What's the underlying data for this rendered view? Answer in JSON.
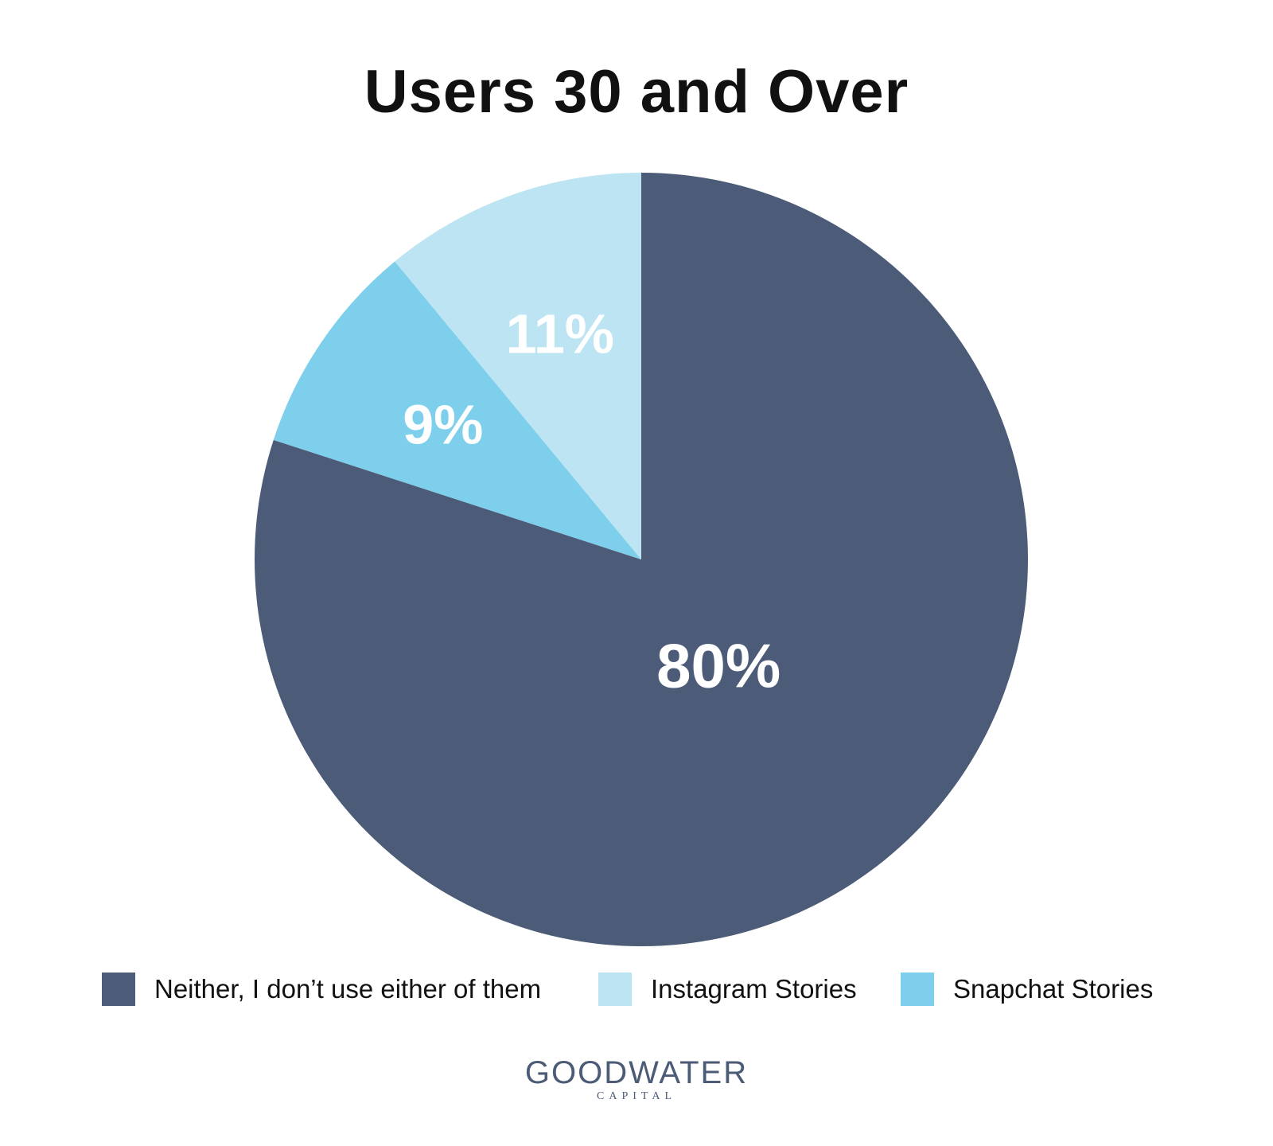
{
  "chart_data": {
    "type": "pie",
    "title": "Users 30 and Over",
    "categories": [
      "Neither, I don’t use either of them",
      "Snapchat Stories",
      "Instagram Stories"
    ],
    "values": [
      80,
      9,
      11
    ],
    "labels": [
      "80%",
      "9%",
      "11%"
    ],
    "colors": [
      "#4c5b78",
      "#7dcfeb",
      "#bde4f2"
    ],
    "legend_position": "bottom",
    "legend": [
      {
        "label": "Neither, I don’t use either of them",
        "color": "#4c5b78"
      },
      {
        "label": "Instagram Stories",
        "color": "#bde4f2"
      },
      {
        "label": "Snapchat Stories",
        "color": "#7dcfeb"
      }
    ]
  },
  "branding": {
    "name": "GOODWATER",
    "sub": "CAPITAL"
  }
}
